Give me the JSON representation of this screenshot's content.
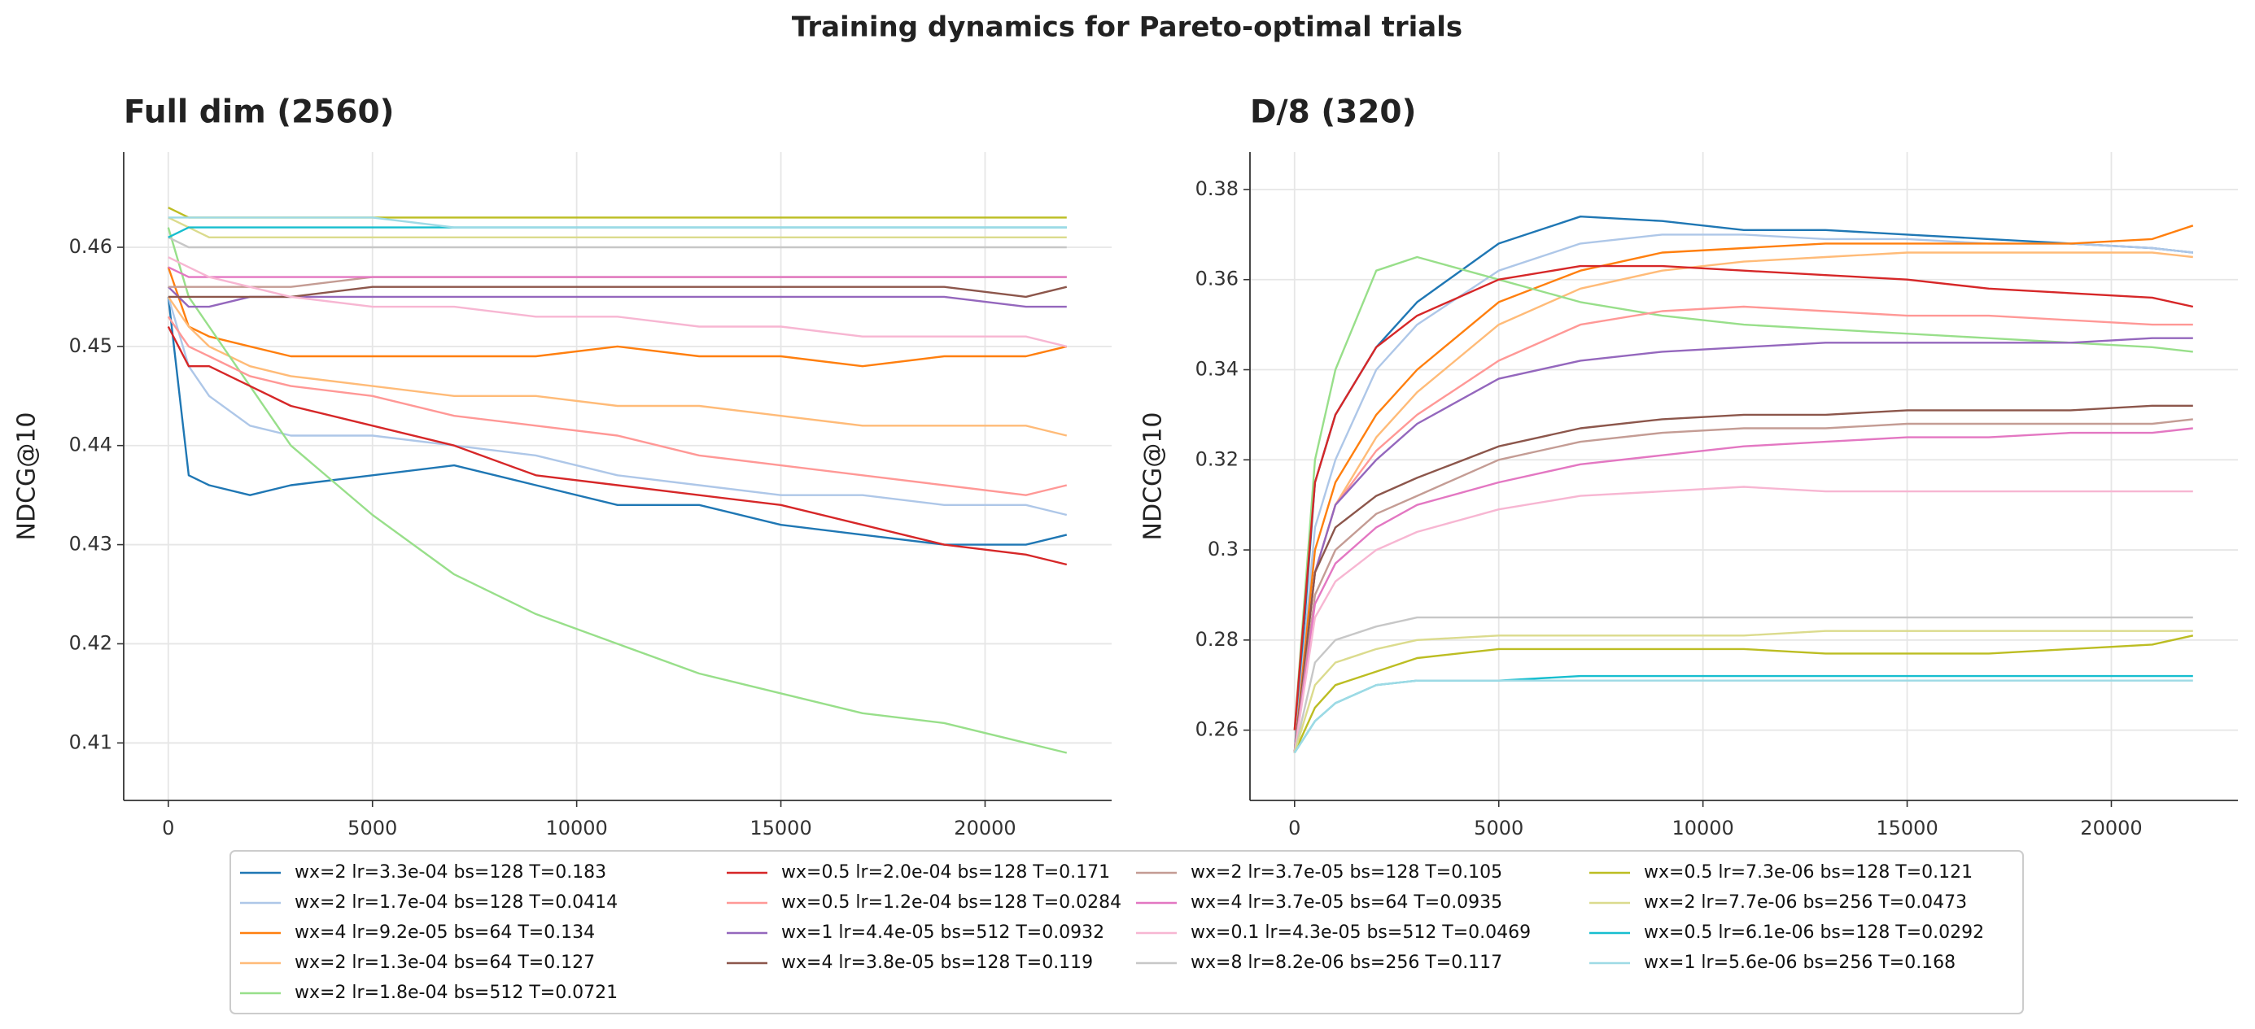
{
  "title": "Training dynamics for Pareto-optimal trials",
  "chart_data": [
    {
      "type": "line",
      "title": "Full dim (2560)",
      "y_label": "NDCG@10",
      "x": [
        0,
        500,
        1000,
        2000,
        3000,
        5000,
        7000,
        9000,
        11000,
        13000,
        15000,
        17000,
        19000,
        21000,
        22000
      ],
      "xlim": [
        -1092,
        23099
      ],
      "xticks": [
        0,
        5000,
        10000,
        15000,
        20000
      ],
      "ylim": [
        0.4042,
        0.4696
      ],
      "yticks": [
        0.41,
        0.42,
        0.43,
        0.44,
        0.45,
        0.46
      ],
      "grid": true,
      "series": [
        {
          "name": "wx=2 lr=3.3e-04 bs=128 T=0.183",
          "color": "#1f77b4",
          "values": [
            0.455,
            0.437,
            0.436,
            0.435,
            0.436,
            0.437,
            0.438,
            0.436,
            0.434,
            0.434,
            0.432,
            0.431,
            0.43,
            0.43,
            0.431
          ]
        },
        {
          "name": "wx=2 lr=1.7e-04 bs=128 T=0.0414",
          "color": "#aec7e8",
          "values": [
            0.455,
            0.448,
            0.445,
            0.442,
            0.441,
            0.441,
            0.44,
            0.439,
            0.437,
            0.436,
            0.435,
            0.435,
            0.434,
            0.434,
            0.433
          ]
        },
        {
          "name": "wx=4 lr=9.2e-05 bs=64 T=0.134",
          "color": "#ff7f0e",
          "values": [
            0.458,
            0.452,
            0.451,
            0.45,
            0.449,
            0.449,
            0.449,
            0.449,
            0.45,
            0.449,
            0.449,
            0.448,
            0.449,
            0.449,
            0.45
          ]
        },
        {
          "name": "wx=2 lr=1.3e-04 bs=64 T=0.127",
          "color": "#ffbb78",
          "values": [
            0.455,
            0.452,
            0.45,
            0.448,
            0.447,
            0.446,
            0.445,
            0.445,
            0.444,
            0.444,
            0.443,
            0.442,
            0.442,
            0.442,
            0.441
          ]
        },
        {
          "name": "wx=2 lr=1.8e-04 bs=512 T=0.0721",
          "color": "#98df8a",
          "values": [
            0.462,
            0.455,
            0.452,
            0.446,
            0.44,
            0.433,
            0.427,
            0.423,
            0.42,
            0.417,
            0.415,
            0.413,
            0.412,
            0.41,
            0.409
          ]
        },
        {
          "name": "wx=0.5 lr=2.0e-04 bs=128 T=0.171",
          "color": "#d62728",
          "values": [
            0.452,
            0.448,
            0.448,
            0.446,
            0.444,
            0.442,
            0.44,
            0.437,
            0.436,
            0.435,
            0.434,
            0.432,
            0.43,
            0.429,
            0.428
          ]
        },
        {
          "name": "wx=0.5 lr=1.2e-04 bs=128 T=0.0284",
          "color": "#ff9896",
          "values": [
            0.453,
            0.45,
            0.449,
            0.447,
            0.446,
            0.445,
            0.443,
            0.442,
            0.441,
            0.439,
            0.438,
            0.437,
            0.436,
            0.435,
            0.436
          ]
        },
        {
          "name": "wx=1 lr=4.4e-05 bs=512 T=0.0932",
          "color": "#9467bd",
          "values": [
            0.456,
            0.454,
            0.454,
            0.455,
            0.455,
            0.455,
            0.455,
            0.455,
            0.455,
            0.455,
            0.455,
            0.455,
            0.455,
            0.454,
            0.454
          ]
        },
        {
          "name": "wx=4 lr=3.8e-05 bs=128 T=0.119",
          "color": "#8c564b",
          "values": [
            0.455,
            0.455,
            0.455,
            0.455,
            0.455,
            0.456,
            0.456,
            0.456,
            0.456,
            0.456,
            0.456,
            0.456,
            0.456,
            0.455,
            0.456
          ]
        },
        {
          "name": "wx=2 lr=3.7e-05 bs=128 T=0.105",
          "color": "#c49c94",
          "values": [
            0.456,
            0.456,
            0.456,
            0.456,
            0.456,
            0.457,
            0.457,
            0.457,
            0.457,
            0.457,
            0.457,
            0.457,
            0.457,
            0.457,
            0.457
          ]
        },
        {
          "name": "wx=4 lr=3.7e-05 bs=64 T=0.0935",
          "color": "#e377c2",
          "values": [
            0.458,
            0.457,
            0.457,
            0.457,
            0.457,
            0.457,
            0.457,
            0.457,
            0.457,
            0.457,
            0.457,
            0.457,
            0.457,
            0.457,
            0.457
          ]
        },
        {
          "name": "wx=0.1 lr=4.3e-05 bs=512 T=0.0469",
          "color": "#f7b6d2",
          "values": [
            0.459,
            0.458,
            0.457,
            0.456,
            0.455,
            0.454,
            0.454,
            0.453,
            0.453,
            0.452,
            0.452,
            0.451,
            0.451,
            0.451,
            0.45
          ]
        },
        {
          "name": "wx=8 lr=8.2e-06 bs=256 T=0.117",
          "color": "#c7c7c7",
          "values": [
            0.461,
            0.46,
            0.46,
            0.46,
            0.46,
            0.46,
            0.46,
            0.46,
            0.46,
            0.46,
            0.46,
            0.46,
            0.46,
            0.46,
            0.46
          ]
        },
        {
          "name": "wx=0.5 lr=7.3e-06 bs=128 T=0.121",
          "color": "#bcbd22",
          "values": [
            0.464,
            0.463,
            0.463,
            0.463,
            0.463,
            0.463,
            0.463,
            0.463,
            0.463,
            0.463,
            0.463,
            0.463,
            0.463,
            0.463,
            0.463
          ]
        },
        {
          "name": "wx=2 lr=7.7e-06 bs=256 T=0.0473",
          "color": "#dbdb8d",
          "values": [
            0.463,
            0.462,
            0.461,
            0.461,
            0.461,
            0.461,
            0.461,
            0.461,
            0.461,
            0.461,
            0.461,
            0.461,
            0.461,
            0.461,
            0.461
          ]
        },
        {
          "name": "wx=0.5 lr=6.1e-06 bs=128 T=0.0292",
          "color": "#17becf",
          "values": [
            0.461,
            0.462,
            0.462,
            0.462,
            0.462,
            0.462,
            0.462,
            0.462,
            0.462,
            0.462,
            0.462,
            0.462,
            0.462,
            0.462,
            0.462
          ]
        },
        {
          "name": "wx=1 lr=5.6e-06 bs=256 T=0.168",
          "color": "#9edae5",
          "values": [
            0.463,
            0.463,
            0.463,
            0.463,
            0.463,
            0.463,
            0.462,
            0.462,
            0.462,
            0.462,
            0.462,
            0.462,
            0.462,
            0.462,
            0.462
          ]
        }
      ]
    },
    {
      "type": "line",
      "title": "D/8 (320)",
      "y_label": "NDCG@10",
      "x": [
        0,
        500,
        1000,
        2000,
        3000,
        5000,
        7000,
        9000,
        11000,
        13000,
        15000,
        17000,
        19000,
        21000,
        22000
      ],
      "xlim": [
        -1092,
        23099
      ],
      "xticks": [
        0,
        5000,
        10000,
        15000,
        20000
      ],
      "ylim": [
        0.2444,
        0.3883
      ],
      "yticks": [
        0.26,
        0.28,
        0.3,
        0.32,
        0.34,
        0.36,
        0.38
      ],
      "grid": true,
      "series": [
        {
          "name": "wx=2 lr=3.3e-04 bs=128 T=0.183",
          "color": "#1f77b4",
          "values": [
            0.255,
            0.315,
            0.33,
            0.345,
            0.355,
            0.368,
            0.374,
            0.373,
            0.371,
            0.371,
            0.37,
            0.369,
            0.368,
            0.367,
            0.366
          ]
        },
        {
          "name": "wx=2 lr=1.7e-04 bs=128 T=0.0414",
          "color": "#aec7e8",
          "values": [
            0.255,
            0.305,
            0.32,
            0.34,
            0.35,
            0.362,
            0.368,
            0.37,
            0.37,
            0.369,
            0.369,
            0.368,
            0.368,
            0.367,
            0.366
          ]
        },
        {
          "name": "wx=4 lr=9.2e-05 bs=64 T=0.134",
          "color": "#ff7f0e",
          "values": [
            0.255,
            0.3,
            0.315,
            0.33,
            0.34,
            0.355,
            0.362,
            0.366,
            0.367,
            0.368,
            0.368,
            0.368,
            0.368,
            0.369,
            0.372
          ]
        },
        {
          "name": "wx=2 lr=1.3e-04 bs=64 T=0.127",
          "color": "#ffbb78",
          "values": [
            0.255,
            0.295,
            0.31,
            0.325,
            0.335,
            0.35,
            0.358,
            0.362,
            0.364,
            0.365,
            0.366,
            0.366,
            0.366,
            0.366,
            0.365
          ]
        },
        {
          "name": "wx=2 lr=1.8e-04 bs=512 T=0.0721",
          "color": "#98df8a",
          "values": [
            0.26,
            0.32,
            0.34,
            0.362,
            0.365,
            0.36,
            0.355,
            0.352,
            0.35,
            0.349,
            0.348,
            0.347,
            0.346,
            0.345,
            0.344
          ]
        },
        {
          "name": "wx=0.5 lr=2.0e-04 bs=128 T=0.171",
          "color": "#d62728",
          "values": [
            0.26,
            0.315,
            0.33,
            0.345,
            0.352,
            0.36,
            0.363,
            0.363,
            0.362,
            0.361,
            0.36,
            0.358,
            0.357,
            0.356,
            0.354
          ]
        },
        {
          "name": "wx=0.5 lr=1.2e-04 bs=128 T=0.0284",
          "color": "#ff9896",
          "values": [
            0.255,
            0.295,
            0.31,
            0.322,
            0.33,
            0.342,
            0.35,
            0.353,
            0.354,
            0.353,
            0.352,
            0.352,
            0.351,
            0.35,
            0.35
          ]
        },
        {
          "name": "wx=1 lr=4.4e-05 bs=512 T=0.0932",
          "color": "#9467bd",
          "values": [
            0.255,
            0.295,
            0.31,
            0.32,
            0.328,
            0.338,
            0.342,
            0.344,
            0.345,
            0.346,
            0.346,
            0.346,
            0.346,
            0.347,
            0.347
          ]
        },
        {
          "name": "wx=4 lr=3.8e-05 bs=128 T=0.119",
          "color": "#8c564b",
          "values": [
            0.255,
            0.295,
            0.305,
            0.312,
            0.316,
            0.323,
            0.327,
            0.329,
            0.33,
            0.33,
            0.331,
            0.331,
            0.331,
            0.332,
            0.332
          ]
        },
        {
          "name": "wx=2 lr=3.7e-05 bs=128 T=0.105",
          "color": "#c49c94",
          "values": [
            0.255,
            0.29,
            0.3,
            0.308,
            0.312,
            0.32,
            0.324,
            0.326,
            0.327,
            0.327,
            0.328,
            0.328,
            0.328,
            0.328,
            0.329
          ]
        },
        {
          "name": "wx=4 lr=3.7e-05 bs=64 T=0.0935",
          "color": "#e377c2",
          "values": [
            0.255,
            0.288,
            0.297,
            0.305,
            0.31,
            0.315,
            0.319,
            0.321,
            0.323,
            0.324,
            0.325,
            0.325,
            0.326,
            0.326,
            0.327
          ]
        },
        {
          "name": "wx=0.1 lr=4.3e-05 bs=512 T=0.0469",
          "color": "#f7b6d2",
          "values": [
            0.255,
            0.285,
            0.293,
            0.3,
            0.304,
            0.309,
            0.312,
            0.313,
            0.314,
            0.313,
            0.313,
            0.313,
            0.313,
            0.313,
            0.313
          ]
        },
        {
          "name": "wx=8 lr=8.2e-06 bs=256 T=0.117",
          "color": "#c7c7c7",
          "values": [
            0.255,
            0.275,
            0.28,
            0.283,
            0.285,
            0.285,
            0.285,
            0.285,
            0.285,
            0.285,
            0.285,
            0.285,
            0.285,
            0.285,
            0.285
          ]
        },
        {
          "name": "wx=0.5 lr=7.3e-06 bs=128 T=0.121",
          "color": "#bcbd22",
          "values": [
            0.255,
            0.265,
            0.27,
            0.273,
            0.276,
            0.278,
            0.278,
            0.278,
            0.278,
            0.277,
            0.277,
            0.277,
            0.278,
            0.279,
            0.281
          ]
        },
        {
          "name": "wx=2 lr=7.7e-06 bs=256 T=0.0473",
          "color": "#dbdb8d",
          "values": [
            0.255,
            0.27,
            0.275,
            0.278,
            0.28,
            0.281,
            0.281,
            0.281,
            0.281,
            0.282,
            0.282,
            0.282,
            0.282,
            0.282,
            0.282
          ]
        },
        {
          "name": "wx=0.5 lr=6.1e-06 bs=128 T=0.0292",
          "color": "#17becf",
          "values": [
            0.255,
            0.262,
            0.266,
            0.27,
            0.271,
            0.271,
            0.272,
            0.272,
            0.272,
            0.272,
            0.272,
            0.272,
            0.272,
            0.272,
            0.272
          ]
        },
        {
          "name": "wx=1 lr=5.6e-06 bs=256 T=0.168",
          "color": "#9edae5",
          "values": [
            0.255,
            0.262,
            0.266,
            0.27,
            0.271,
            0.271,
            0.271,
            0.271,
            0.271,
            0.271,
            0.271,
            0.271,
            0.271,
            0.271,
            0.271
          ]
        }
      ]
    }
  ]
}
